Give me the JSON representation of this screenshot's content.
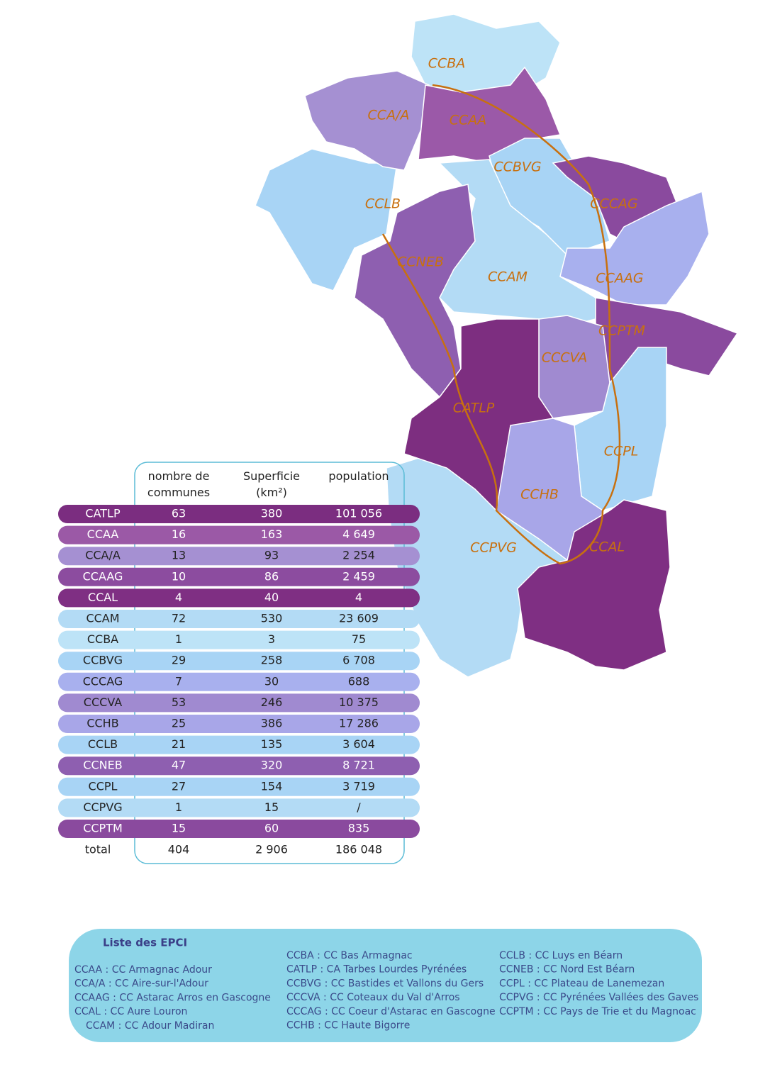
{
  "map": {
    "labels": [
      "CCBA",
      "CCA/A",
      "CCAA",
      "CCBVG",
      "CCLB",
      "CCCAG",
      "CCNEB",
      "CCAM",
      "CCAAG",
      "CCPTM",
      "CCCVA",
      "CATLP",
      "CCPL",
      "CCHB",
      "CCPVG",
      "CCAL"
    ]
  },
  "table": {
    "headers": [
      "nombre de communes",
      "Superficie (km²)",
      "population"
    ],
    "rows": [
      {
        "cells": [
          "CATLP",
          "63",
          "380",
          "101 056"
        ],
        "color": "#7b2d80"
      },
      {
        "cells": [
          "CCAA",
          "16",
          "163",
          "4 649"
        ],
        "color": "#9b59a6"
      },
      {
        "cells": [
          "CCA/A",
          "13",
          "93",
          "2 254"
        ],
        "color": "#a590d2"
      },
      {
        "cells": [
          "CCAAG",
          "10",
          "86",
          "2 459"
        ],
        "color": "#8c4c9f"
      },
      {
        "cells": [
          "CCAL",
          "4",
          "40",
          "4"
        ],
        "color": "#7f2f83"
      },
      {
        "cells": [
          "CCAM",
          "72",
          "530",
          "23 609"
        ],
        "color": "#b3dbf5"
      },
      {
        "cells": [
          "CCBA",
          "1",
          "3",
          "75"
        ],
        "color": "#bde3f7"
      },
      {
        "cells": [
          "CCBVG",
          "29",
          "258",
          "6 708"
        ],
        "color": "#a8d4f5"
      },
      {
        "cells": [
          "CCCAG",
          "7",
          "30",
          "688"
        ],
        "color": "#a8b0ee"
      },
      {
        "cells": [
          "CCCVA",
          "53",
          "246",
          "10 375"
        ],
        "color": "#a08ad0"
      },
      {
        "cells": [
          "CCHB",
          "25",
          "386",
          "17 286"
        ],
        "color": "#a8a6e8"
      },
      {
        "cells": [
          "CCLB",
          "21",
          "135",
          "3 604"
        ],
        "color": "#a8d4f5"
      },
      {
        "cells": [
          "CCNEB",
          "47",
          "320",
          "8 721"
        ],
        "color": "#8e5fb0"
      },
      {
        "cells": [
          "CCPL",
          "27",
          "154",
          "3 719"
        ],
        "color": "#a8d4f5"
      },
      {
        "cells": [
          "CCPVG",
          "1",
          "15",
          "/"
        ],
        "color": "#b3dbf5"
      },
      {
        "cells": [
          "CCPTM",
          "15",
          "60",
          "835"
        ],
        "color": "#8a4a9e"
      }
    ],
    "total": [
      "total",
      "404",
      "2 906",
      "186 048"
    ]
  },
  "legend": {
    "title": "Liste des EPCI",
    "columns": [
      [
        "CCAA : CC Armagnac Adour",
        "CCA/A : CC Aire-sur-l'Adour",
        "CCAAG : CC Astarac Arros en Gascogne",
        "CCAL : CC Aure Louron",
        "CCAM : CC Adour Madiran"
      ],
      [
        "CCBA : CC Bas Armagnac",
        "CATLP : CA Tarbes Lourdes Pyrénées",
        "CCBVG : CC Bastides et Vallons du Gers",
        "CCCVA : CC Coteaux du Val d'Arros",
        "CCCAG : CC Coeur d'Astarac en Gascogne",
        "CCHB : CC Haute Bigorre"
      ],
      [
        "CCLB : CC Luys en Béarn",
        "CCNEB : CC Nord Est Béarn",
        "CCPL : CC Plateau de Lanemezan",
        "CCPVG : CC Pyrénées Vallées des Gaves",
        "CCPTM : CC Pays de Trie et du Magnoac"
      ]
    ]
  }
}
